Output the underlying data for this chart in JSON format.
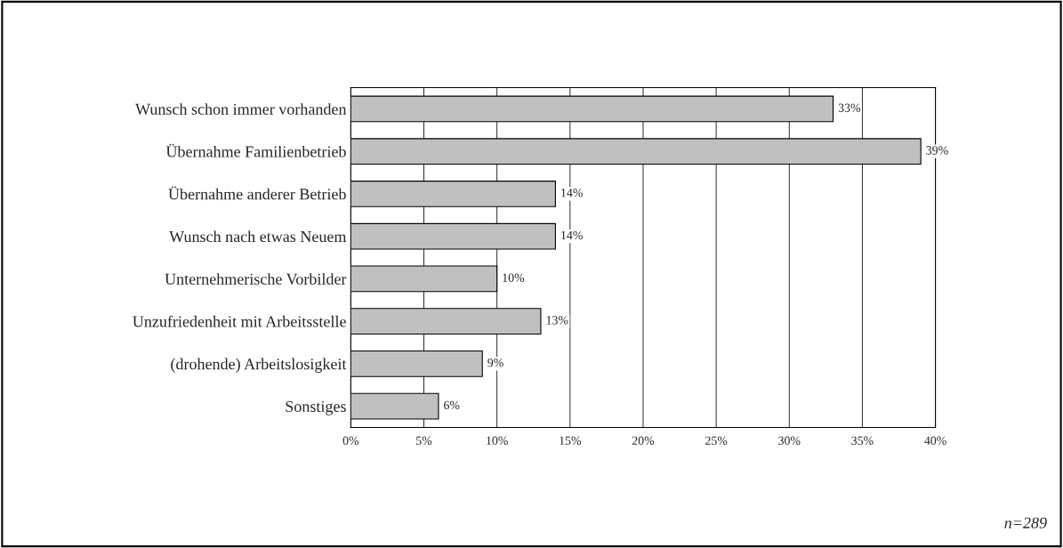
{
  "chart_data": {
    "type": "bar",
    "orientation": "horizontal",
    "categories": [
      "Wunsch schon immer vorhanden",
      "Übernahme Familienbetrieb",
      "Übernahme anderer Betrieb",
      "Wunsch nach etwas Neuem",
      "Unternehmerische Vorbilder",
      "Unzufriedenheit mit Arbeitsstelle",
      "(drohende) Arbeitslosigkeit",
      "Sonstiges"
    ],
    "values": [
      33,
      39,
      14,
      14,
      10,
      13,
      9,
      6
    ],
    "value_labels": [
      "33%",
      "39%",
      "14%",
      "14%",
      "10%",
      "13%",
      "9%",
      "6%"
    ],
    "color": "#c0c0c0",
    "xlim": [
      0,
      40
    ],
    "xticks": [
      {
        "value": 0,
        "label": "0%"
      },
      {
        "value": 5,
        "label": "5%"
      },
      {
        "value": 10,
        "label": "10%"
      },
      {
        "value": 15,
        "label": "15%"
      },
      {
        "value": 20,
        "label": "20%"
      },
      {
        "value": 25,
        "label": "25%"
      },
      {
        "value": 30,
        "label": "30%"
      },
      {
        "value": 35,
        "label": "35%"
      },
      {
        "value": 40,
        "label": "40%"
      }
    ],
    "grid": "x",
    "annotations": [
      "n=289"
    ]
  }
}
